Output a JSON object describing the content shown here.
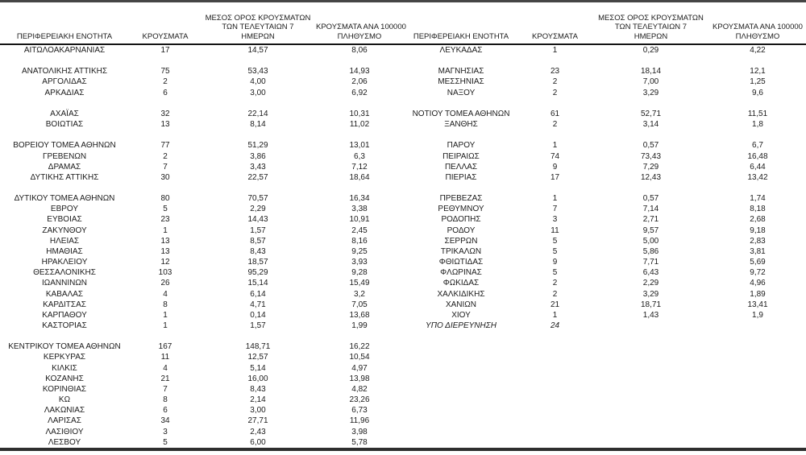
{
  "table": {
    "headers": {
      "region": "ΠΕΡΙΦΕΡΕΙΑΚΗ ΕΝΟΤΗΤΑ",
      "cases": "ΚΡΟΥΣΜΑΤΑ",
      "avg7_line1": "ΜΕΣΟΣ ΟΡΟΣ ΚΡΟΥΣΜΑΤΩΝ",
      "avg7_line2": "ΤΩΝ ΤΕΛΕΥΤΑΙΩΝ 7",
      "avg7_line3": "ΗΜΕΡΩΝ",
      "per100k_line1": "ΚΡΟΥΣΜΑΤΑ ΑΝΑ 100000",
      "per100k_line2": "ΠΛΗΘΥΣΜΟ"
    },
    "rows": [
      {
        "left": {
          "region": "ΑΙΤΩΛΟΑΚΑΡΝΑΝΙΑΣ",
          "cases": "17",
          "avg7": "14,57",
          "per100k": "8,06"
        },
        "right": {
          "region": "ΛΕΥΚΑΔΑΣ",
          "cases": "1",
          "avg7": "0,29",
          "per100k": "4,22"
        }
      },
      {
        "left": null,
        "right": null
      },
      {
        "left": {
          "region": "ΑΝΑΤΟΛΙΚΗΣ ΑΤΤΙΚΗΣ",
          "cases": "75",
          "avg7": "53,43",
          "per100k": "14,93"
        },
        "right": {
          "region": "ΜΑΓΝΗΣΙΑΣ",
          "cases": "23",
          "avg7": "18,14",
          "per100k": "12,1"
        }
      },
      {
        "left": {
          "region": "ΑΡΓΟΛΙΔΑΣ",
          "cases": "2",
          "avg7": "4,00",
          "per100k": "2,06"
        },
        "right": {
          "region": "ΜΕΣΣΗΝΙΑΣ",
          "cases": "2",
          "avg7": "7,00",
          "per100k": "1,25"
        }
      },
      {
        "left": {
          "region": "ΑΡΚΑΔΙΑΣ",
          "cases": "6",
          "avg7": "3,00",
          "per100k": "6,92"
        },
        "right": {
          "region": "ΝΑΞΟΥ",
          "cases": "2",
          "avg7": "3,29",
          "per100k": "9,6"
        }
      },
      {
        "left": null,
        "right": null
      },
      {
        "left": {
          "region": "ΑΧΑΪΑΣ",
          "cases": "32",
          "avg7": "22,14",
          "per100k": "10,31"
        },
        "right": {
          "region": "ΝΟΤΙΟΥ ΤΟΜΕΑ ΑΘΗΝΩΝ",
          "cases": "61",
          "avg7": "52,71",
          "per100k": "11,51"
        }
      },
      {
        "left": {
          "region": "ΒΟΙΩΤΙΑΣ",
          "cases": "13",
          "avg7": "8,14",
          "per100k": "11,02"
        },
        "right": {
          "region": "ΞΑΝΘΗΣ",
          "cases": "2",
          "avg7": "3,14",
          "per100k": "1,8"
        }
      },
      {
        "left": null,
        "right": null
      },
      {
        "left": {
          "region": "ΒΟΡΕΙΟΥ ΤΟΜΕΑ ΑΘΗΝΩΝ",
          "cases": "77",
          "avg7": "51,29",
          "per100k": "13,01"
        },
        "right": {
          "region": "ΠΑΡΟΥ",
          "cases": "1",
          "avg7": "0,57",
          "per100k": "6,7"
        }
      },
      {
        "left": {
          "region": "ΓΡΕΒΕΝΩΝ",
          "cases": "2",
          "avg7": "3,86",
          "per100k": "6,3"
        },
        "right": {
          "region": "ΠΕΙΡΑΙΩΣ",
          "cases": "74",
          "avg7": "73,43",
          "per100k": "16,48"
        }
      },
      {
        "left": {
          "region": "ΔΡΑΜΑΣ",
          "cases": "7",
          "avg7": "3,43",
          "per100k": "7,12"
        },
        "right": {
          "region": "ΠΕΛΛΑΣ",
          "cases": "9",
          "avg7": "7,29",
          "per100k": "6,44"
        }
      },
      {
        "left": {
          "region": "ΔΥΤΙΚΗΣ ΑΤΤΙΚΗΣ",
          "cases": "30",
          "avg7": "22,57",
          "per100k": "18,64"
        },
        "right": {
          "region": "ΠΙΕΡΙΑΣ",
          "cases": "17",
          "avg7": "12,43",
          "per100k": "13,42"
        }
      },
      {
        "left": null,
        "right": null
      },
      {
        "left": {
          "region": "ΔΥΤΙΚΟΥ ΤΟΜΕΑ ΑΘΗΝΩΝ",
          "cases": "80",
          "avg7": "70,57",
          "per100k": "16,34"
        },
        "right": {
          "region": "ΠΡΕΒΕΖΑΣ",
          "cases": "1",
          "avg7": "0,57",
          "per100k": "1,74"
        }
      },
      {
        "left": {
          "region": "ΕΒΡΟΥ",
          "cases": "5",
          "avg7": "2,29",
          "per100k": "3,38"
        },
        "right": {
          "region": "ΡΕΘΥΜΝΟΥ",
          "cases": "7",
          "avg7": "7,14",
          "per100k": "8,18"
        }
      },
      {
        "left": {
          "region": "ΕΥΒΟΙΑΣ",
          "cases": "23",
          "avg7": "14,43",
          "per100k": "10,91"
        },
        "right": {
          "region": "ΡΟΔΟΠΗΣ",
          "cases": "3",
          "avg7": "2,71",
          "per100k": "2,68"
        }
      },
      {
        "left": {
          "region": "ΖΑΚΥΝΘΟΥ",
          "cases": "1",
          "avg7": "1,57",
          "per100k": "2,45"
        },
        "right": {
          "region": "ΡΟΔΟΥ",
          "cases": "11",
          "avg7": "9,57",
          "per100k": "9,18"
        }
      },
      {
        "left": {
          "region": "ΗΛΕΙΑΣ",
          "cases": "13",
          "avg7": "8,57",
          "per100k": "8,16"
        },
        "right": {
          "region": "ΣΕΡΡΩΝ",
          "cases": "5",
          "avg7": "5,00",
          "per100k": "2,83"
        }
      },
      {
        "left": {
          "region": "ΗΜΑΘΙΑΣ",
          "cases": "13",
          "avg7": "8,43",
          "per100k": "9,25"
        },
        "right": {
          "region": "ΤΡΙΚΑΛΩΝ",
          "cases": "5",
          "avg7": "5,86",
          "per100k": "3,81"
        }
      },
      {
        "left": {
          "region": "ΗΡΑΚΛΕΙΟΥ",
          "cases": "12",
          "avg7": "18,57",
          "per100k": "3,93"
        },
        "right": {
          "region": "ΦΘΙΩΤΙΔΑΣ",
          "cases": "9",
          "avg7": "7,71",
          "per100k": "5,69"
        }
      },
      {
        "left": {
          "region": "ΘΕΣΣΑΛΟΝΙΚΗΣ",
          "cases": "103",
          "avg7": "95,29",
          "per100k": "9,28"
        },
        "right": {
          "region": "ΦΛΩΡΙΝΑΣ",
          "cases": "5",
          "avg7": "6,43",
          "per100k": "9,72"
        }
      },
      {
        "left": {
          "region": "ΙΩΑΝΝΙΝΩΝ",
          "cases": "26",
          "avg7": "15,14",
          "per100k": "15,49"
        },
        "right": {
          "region": "ΦΩΚΙΔΑΣ",
          "cases": "2",
          "avg7": "2,29",
          "per100k": "4,96"
        }
      },
      {
        "left": {
          "region": "ΚΑΒΑΛΑΣ",
          "cases": "4",
          "avg7": "6,14",
          "per100k": "3,2"
        },
        "right": {
          "region": "ΧΑΛΚΙΔΙΚΗΣ",
          "cases": "2",
          "avg7": "3,29",
          "per100k": "1,89"
        }
      },
      {
        "left": {
          "region": "ΚΑΡΔΙΤΣΑΣ",
          "cases": "8",
          "avg7": "4,71",
          "per100k": "7,05"
        },
        "right": {
          "region": "ΧΑΝΙΩΝ",
          "cases": "21",
          "avg7": "18,71",
          "per100k": "13,41"
        }
      },
      {
        "left": {
          "region": "ΚΑΡΠΑΘΟΥ",
          "cases": "1",
          "avg7": "0,14",
          "per100k": "13,68"
        },
        "right": {
          "region": "ΧΙΟΥ",
          "cases": "1",
          "avg7": "1,43",
          "per100k": "1,9"
        }
      },
      {
        "left": {
          "region": "ΚΑΣΤΟΡΙΑΣ",
          "cases": "1",
          "avg7": "1,57",
          "per100k": "1,99"
        },
        "right": {
          "region": "ΥΠΟ ΔΙΕΡΕΥΝΗΣΗ",
          "cases": "24",
          "avg7": "",
          "per100k": "",
          "italic": true
        }
      },
      {
        "left": null,
        "right": null
      },
      {
        "left": {
          "region": "ΚΕΝΤΡΙΚΟΥ ΤΟΜΕΑ ΑΘΗΝΩΝ",
          "cases": "167",
          "avg7": "148,71",
          "per100k": "16,22"
        },
        "right": null
      },
      {
        "left": {
          "region": "ΚΕΡΚΥΡΑΣ",
          "cases": "11",
          "avg7": "12,57",
          "per100k": "10,54"
        },
        "right": null
      },
      {
        "left": {
          "region": "ΚΙΛΚΙΣ",
          "cases": "4",
          "avg7": "5,14",
          "per100k": "4,97"
        },
        "right": null
      },
      {
        "left": {
          "region": "ΚΟΖΑΝΗΣ",
          "cases": "21",
          "avg7": "16,00",
          "per100k": "13,98"
        },
        "right": null
      },
      {
        "left": {
          "region": "ΚΟΡΙΝΘΙΑΣ",
          "cases": "7",
          "avg7": "8,43",
          "per100k": "4,82"
        },
        "right": null
      },
      {
        "left": {
          "region": "ΚΩ",
          "cases": "8",
          "avg7": "2,14",
          "per100k": "23,26"
        },
        "right": null
      },
      {
        "left": {
          "region": "ΛΑΚΩΝΙΑΣ",
          "cases": "6",
          "avg7": "3,00",
          "per100k": "6,73"
        },
        "right": null
      },
      {
        "left": {
          "region": "ΛΑΡΙΣΑΣ",
          "cases": "34",
          "avg7": "27,71",
          "per100k": "11,96"
        },
        "right": null
      },
      {
        "left": {
          "region": "ΛΑΣΙΘΙΟΥ",
          "cases": "3",
          "avg7": "2,43",
          "per100k": "3,98"
        },
        "right": null
      },
      {
        "left": {
          "region": "ΛΕΣΒΟΥ",
          "cases": "5",
          "avg7": "6,00",
          "per100k": "5,78"
        },
        "right": null
      }
    ]
  }
}
